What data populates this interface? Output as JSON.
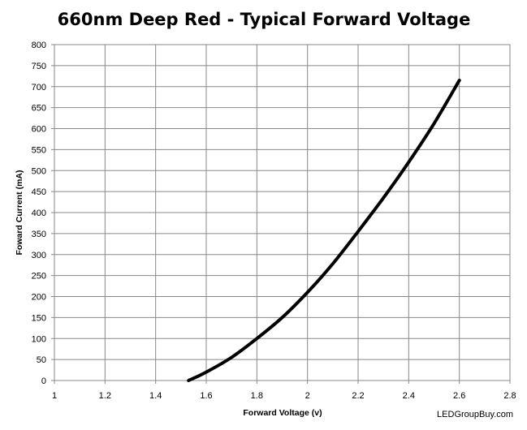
{
  "chart_data": {
    "type": "line",
    "title": "660nm Deep Red - Typical Forward Voltage",
    "xlabel": "Forward Voltage (v)",
    "ylabel": "Foward Current (mA)",
    "xlim": [
      1,
      2.8
    ],
    "ylim": [
      0,
      800
    ],
    "x_ticks": [
      "1",
      "1.2",
      "1.4",
      "1.6",
      "1.8",
      "2",
      "2.2",
      "2.4",
      "2.6",
      "2.8"
    ],
    "y_ticks": [
      "0",
      "50",
      "100",
      "150",
      "200",
      "250",
      "300",
      "350",
      "400",
      "450",
      "500",
      "550",
      "600",
      "650",
      "700",
      "750",
      "800"
    ],
    "grid": true,
    "legend": "none",
    "series": [
      {
        "color": "#000000",
        "x": [
          1.53,
          1.6,
          1.7,
          1.8,
          1.9,
          2.0,
          2.1,
          2.2,
          2.3,
          2.4,
          2.5,
          2.6
        ],
        "y": [
          0,
          20,
          55,
          100,
          150,
          210,
          278,
          355,
          435,
          520,
          612,
          715
        ]
      }
    ]
  },
  "watermark": "LEDGroupBuy.com"
}
